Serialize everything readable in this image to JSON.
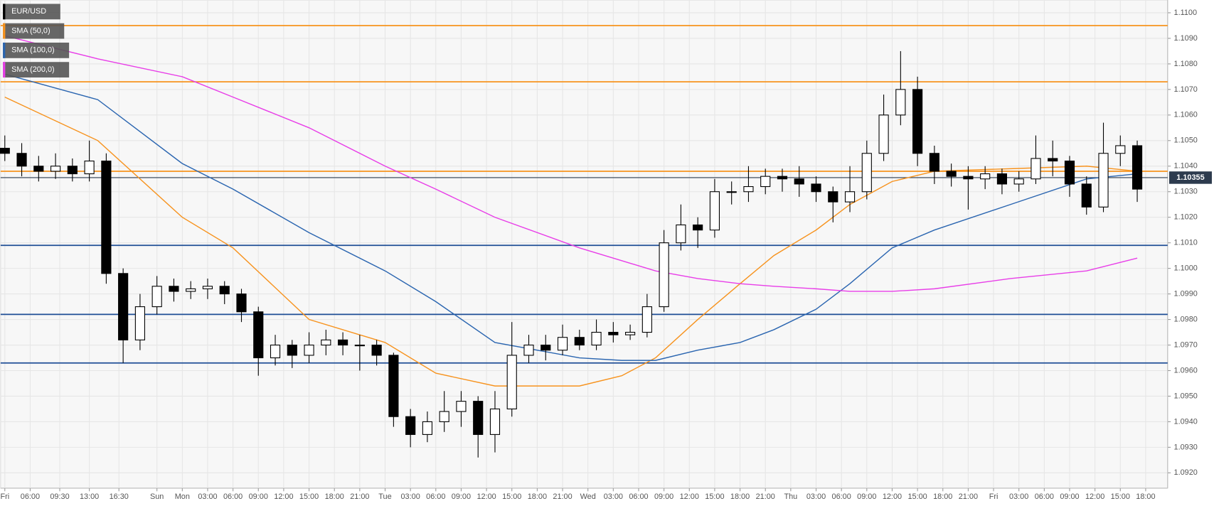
{
  "chart_data": {
    "type": "candlestick",
    "symbol": "EUR/USD",
    "symbol_color": "#000000",
    "up_color": "#ffffff",
    "down_color": "#000000",
    "wick_color": "#000000",
    "grid": true,
    "xlim": [
      -21.5,
      116.6
    ],
    "ylim": [
      1.0914,
      1.1105
    ],
    "xticks": [
      {
        "value": -21,
        "label": "Fri"
      },
      {
        "value": -18,
        "label": "06:00"
      },
      {
        "value": -14.5,
        "label": "09:30"
      },
      {
        "value": -11,
        "label": "13:00"
      },
      {
        "value": -7.5,
        "label": "16:30"
      },
      {
        "value": -3,
        "label": "Sun"
      },
      {
        "value": 0,
        "label": "Mon"
      },
      {
        "value": 3,
        "label": "03:00"
      },
      {
        "value": 6,
        "label": "06:00"
      },
      {
        "value": 9,
        "label": "09:00"
      },
      {
        "value": 12,
        "label": "12:00"
      },
      {
        "value": 15,
        "label": "15:00"
      },
      {
        "value": 18,
        "label": "18:00"
      },
      {
        "value": 21,
        "label": "21:00"
      },
      {
        "value": 24,
        "label": "Tue"
      },
      {
        "value": 27,
        "label": "03:00"
      },
      {
        "value": 30,
        "label": "06:00"
      },
      {
        "value": 33,
        "label": "09:00"
      },
      {
        "value": 36,
        "label": "12:00"
      },
      {
        "value": 39,
        "label": "15:00"
      },
      {
        "value": 42,
        "label": "18:00"
      },
      {
        "value": 45,
        "label": "21:00"
      },
      {
        "value": 48,
        "label": "Wed"
      },
      {
        "value": 51,
        "label": "03:00"
      },
      {
        "value": 54,
        "label": "06:00"
      },
      {
        "value": 57,
        "label": "09:00"
      },
      {
        "value": 60,
        "label": "12:00"
      },
      {
        "value": 63,
        "label": "15:00"
      },
      {
        "value": 66,
        "label": "18:00"
      },
      {
        "value": 69,
        "label": "21:00"
      },
      {
        "value": 72,
        "label": "Thu"
      },
      {
        "value": 75,
        "label": "03:00"
      },
      {
        "value": 78,
        "label": "06:00"
      },
      {
        "value": 81,
        "label": "09:00"
      },
      {
        "value": 84,
        "label": "12:00"
      },
      {
        "value": 87,
        "label": "15:00"
      },
      {
        "value": 90,
        "label": "18:00"
      },
      {
        "value": 93,
        "label": "21:00"
      },
      {
        "value": 96,
        "label": "Fri"
      },
      {
        "value": 99,
        "label": "03:00"
      },
      {
        "value": 102,
        "label": "06:00"
      },
      {
        "value": 105,
        "label": "09:00"
      },
      {
        "value": 108,
        "label": "12:00"
      },
      {
        "value": 111,
        "label": "15:00"
      },
      {
        "value": 114,
        "label": "18:00"
      }
    ],
    "yticks": [
      {
        "value": 1.11,
        "label": "1.1100"
      },
      {
        "value": 1.109,
        "label": "1.1090"
      },
      {
        "value": 1.108,
        "label": "1.1080"
      },
      {
        "value": 1.107,
        "label": "1.1070"
      },
      {
        "value": 1.106,
        "label": "1.1060"
      },
      {
        "value": 1.105,
        "label": "1.1050"
      },
      {
        "value": 1.104,
        "label": "1.1040"
      },
      {
        "value": 1.103,
        "label": "1.1030"
      },
      {
        "value": 1.102,
        "label": "1.1020"
      },
      {
        "value": 1.101,
        "label": "1.1010"
      },
      {
        "value": 1.1,
        "label": "1.1000"
      },
      {
        "value": 1.099,
        "label": "1.0990"
      },
      {
        "value": 1.098,
        "label": "1.0980"
      },
      {
        "value": 1.097,
        "label": "1.0970"
      },
      {
        "value": 1.096,
        "label": "1.0960"
      },
      {
        "value": 1.095,
        "label": "1.0950"
      },
      {
        "value": 1.094,
        "label": "1.0940"
      },
      {
        "value": 1.093,
        "label": "1.0930"
      },
      {
        "value": 1.092,
        "label": "1.0920"
      }
    ],
    "x": [
      -21,
      -19,
      -17,
      -15,
      -13,
      -11,
      -9,
      -7,
      -5,
      -3,
      -1,
      1,
      3,
      5,
      7,
      9,
      11,
      13,
      15,
      17,
      19,
      21,
      23,
      25,
      27,
      29,
      31,
      33,
      35,
      37,
      39,
      41,
      43,
      45,
      47,
      49,
      51,
      53,
      55,
      57,
      59,
      61,
      63,
      65,
      67,
      69,
      71,
      73,
      75,
      77,
      79,
      81,
      83,
      85,
      87,
      89,
      91,
      93,
      95,
      97,
      99,
      101,
      103,
      105,
      107,
      109,
      111,
      113
    ],
    "ohlc": [
      [
        1.1047,
        1.1052,
        1.1042,
        1.1045
      ],
      [
        1.1045,
        1.1049,
        1.1036,
        1.104
      ],
      [
        1.104,
        1.1044,
        1.1034,
        1.1038
      ],
      [
        1.1038,
        1.1045,
        1.1035,
        1.104
      ],
      [
        1.104,
        1.1043,
        1.1034,
        1.1037
      ],
      [
        1.1037,
        1.105,
        1.1034,
        1.1042
      ],
      [
        1.1042,
        1.1045,
        1.0994,
        1.0998
      ],
      [
        1.0998,
        1.1,
        1.0963,
        1.0972
      ],
      [
        1.0972,
        1.099,
        1.0968,
        1.0985
      ],
      [
        1.0985,
        1.0997,
        1.0982,
        1.0993
      ],
      [
        1.0993,
        1.0996,
        1.0987,
        1.0991
      ],
      [
        1.0991,
        1.0995,
        1.0988,
        1.0992
      ],
      [
        1.0992,
        1.0996,
        1.0988,
        1.0993
      ],
      [
        1.0993,
        1.0995,
        1.0986,
        1.099
      ],
      [
        1.099,
        1.0992,
        1.0979,
        1.0983
      ],
      [
        1.0983,
        1.0985,
        1.0958,
        1.0965
      ],
      [
        1.0965,
        1.0974,
        1.0962,
        1.097
      ],
      [
        1.097,
        1.0972,
        1.0961,
        1.0966
      ],
      [
        1.0966,
        1.0975,
        1.0963,
        1.097
      ],
      [
        1.097,
        1.0976,
        1.0966,
        1.0972
      ],
      [
        1.0972,
        1.0975,
        1.0966,
        1.097
      ],
      [
        1.097,
        1.0974,
        1.096,
        1.097
      ],
      [
        1.097,
        1.0972,
        1.0962,
        1.0966
      ],
      [
        1.0966,
        1.0967,
        1.0938,
        1.0942
      ],
      [
        1.0942,
        1.0945,
        1.093,
        1.0935
      ],
      [
        1.0935,
        1.0944,
        1.0932,
        1.094
      ],
      [
        1.094,
        1.0952,
        1.0936,
        1.0944
      ],
      [
        1.0944,
        1.0952,
        1.0938,
        1.0948
      ],
      [
        1.0948,
        1.095,
        1.0926,
        1.0935
      ],
      [
        1.0935,
        1.0952,
        1.0928,
        1.0945
      ],
      [
        1.0945,
        1.0979,
        1.0942,
        1.0966
      ],
      [
        1.0966,
        1.0974,
        1.0963,
        1.097
      ],
      [
        1.097,
        1.0974,
        1.0964,
        1.0968
      ],
      [
        1.0968,
        1.0978,
        1.0966,
        1.0973
      ],
      [
        1.0973,
        1.0976,
        1.0968,
        1.097
      ],
      [
        1.097,
        1.098,
        1.0968,
        1.0975
      ],
      [
        1.0975,
        1.0979,
        1.0971,
        1.0974
      ],
      [
        1.0974,
        1.0978,
        1.0972,
        1.0975
      ],
      [
        1.0975,
        1.099,
        1.0973,
        1.0985
      ],
      [
        1.0985,
        1.1015,
        1.0983,
        1.101
      ],
      [
        1.101,
        1.1025,
        1.1007,
        1.1017
      ],
      [
        1.1017,
        1.102,
        1.1008,
        1.1015
      ],
      [
        1.1015,
        1.1035,
        1.1012,
        1.103
      ],
      [
        1.103,
        1.1034,
        1.1025,
        1.103
      ],
      [
        1.103,
        1.104,
        1.1026,
        1.1032
      ],
      [
        1.1032,
        1.1039,
        1.1029,
        1.1036
      ],
      [
        1.1036,
        1.1039,
        1.103,
        1.1035
      ],
      [
        1.1035,
        1.104,
        1.1028,
        1.1033
      ],
      [
        1.1033,
        1.1036,
        1.1026,
        1.103
      ],
      [
        1.103,
        1.1032,
        1.1018,
        1.1026
      ],
      [
        1.1026,
        1.104,
        1.1022,
        1.103
      ],
      [
        1.103,
        1.105,
        1.1027,
        1.1045
      ],
      [
        1.1045,
        1.1068,
        1.1042,
        1.106
      ],
      [
        1.106,
        1.1085,
        1.1056,
        1.107
      ],
      [
        1.107,
        1.1075,
        1.104,
        1.1045
      ],
      [
        1.1045,
        1.1048,
        1.1033,
        1.1038
      ],
      [
        1.1038,
        1.1041,
        1.1032,
        1.1036
      ],
      [
        1.1036,
        1.104,
        1.1023,
        1.1035
      ],
      [
        1.1035,
        1.104,
        1.1031,
        1.1037
      ],
      [
        1.1037,
        1.1039,
        1.1029,
        1.1033
      ],
      [
        1.1033,
        1.1038,
        1.103,
        1.1035
      ],
      [
        1.1035,
        1.1052,
        1.1033,
        1.1043
      ],
      [
        1.1043,
        1.105,
        1.1036,
        1.1042
      ],
      [
        1.1042,
        1.1044,
        1.1028,
        1.1033
      ],
      [
        1.1033,
        1.1036,
        1.1021,
        1.1024
      ],
      [
        1.1024,
        1.1057,
        1.1022,
        1.1045
      ],
      [
        1.1045,
        1.1052,
        1.104,
        1.1048
      ],
      [
        1.1048,
        1.105,
        1.1026,
        1.1031
      ]
    ],
    "series": [
      {
        "name": "SMA (50,0)",
        "color": "#f7931e",
        "x": [
          -21,
          -10,
          0,
          6,
          15,
          24,
          30,
          37,
          47,
          52,
          56,
          61,
          66,
          70,
          75,
          79,
          84,
          89,
          98,
          107,
          113
        ],
        "values": [
          1.1067,
          1.105,
          1.102,
          1.1008,
          1.098,
          1.0971,
          1.0959,
          1.0954,
          1.0954,
          1.0958,
          1.0965,
          1.098,
          1.0994,
          1.1005,
          1.1015,
          1.1025,
          1.1034,
          1.1038,
          1.1039,
          1.104,
          1.1038
        ]
      },
      {
        "name": "SMA (100,0)",
        "color": "#2a65b0",
        "x": [
          -21,
          -10,
          0,
          6,
          15,
          24,
          30,
          37,
          47,
          52,
          56,
          61,
          66,
          70,
          75,
          79,
          84,
          89,
          98,
          107,
          113
        ],
        "values": [
          1.1076,
          1.1066,
          1.1041,
          1.1031,
          1.1014,
          1.0999,
          1.0987,
          1.0971,
          1.0965,
          1.0964,
          1.0964,
          1.0968,
          1.0971,
          1.0976,
          1.0984,
          1.0994,
          1.1008,
          1.1015,
          1.1025,
          1.1035,
          1.1037
        ]
      },
      {
        "name": "SMA (200,0)",
        "color": "#e83ee8",
        "x": [
          -21,
          -10,
          0,
          6,
          15,
          24,
          30,
          37,
          47,
          52,
          56,
          61,
          66,
          70,
          75,
          79,
          84,
          89,
          98,
          107,
          113
        ],
        "values": [
          1.1091,
          1.1082,
          1.1075,
          1.1067,
          1.1055,
          1.104,
          1.1031,
          1.102,
          1.1008,
          1.1003,
          1.0999,
          1.0996,
          1.0994,
          1.0993,
          1.0992,
          1.0991,
          1.0991,
          1.0992,
          1.0996,
          1.0999,
          1.1004
        ]
      }
    ],
    "levels": [
      {
        "value": 1.1095,
        "color": "#f7931e"
      },
      {
        "value": 1.1073,
        "color": "#f7931e"
      },
      {
        "value": 1.1038,
        "color": "#f7931e"
      },
      {
        "value": 1.1009,
        "color": "#1f4e96"
      },
      {
        "value": 1.0982,
        "color": "#1f4e96"
      },
      {
        "value": 1.0963,
        "color": "#1f4e96"
      }
    ],
    "last_price": {
      "value": 1.10355,
      "label": "1.10355",
      "color": "#2d3b4e"
    }
  }
}
